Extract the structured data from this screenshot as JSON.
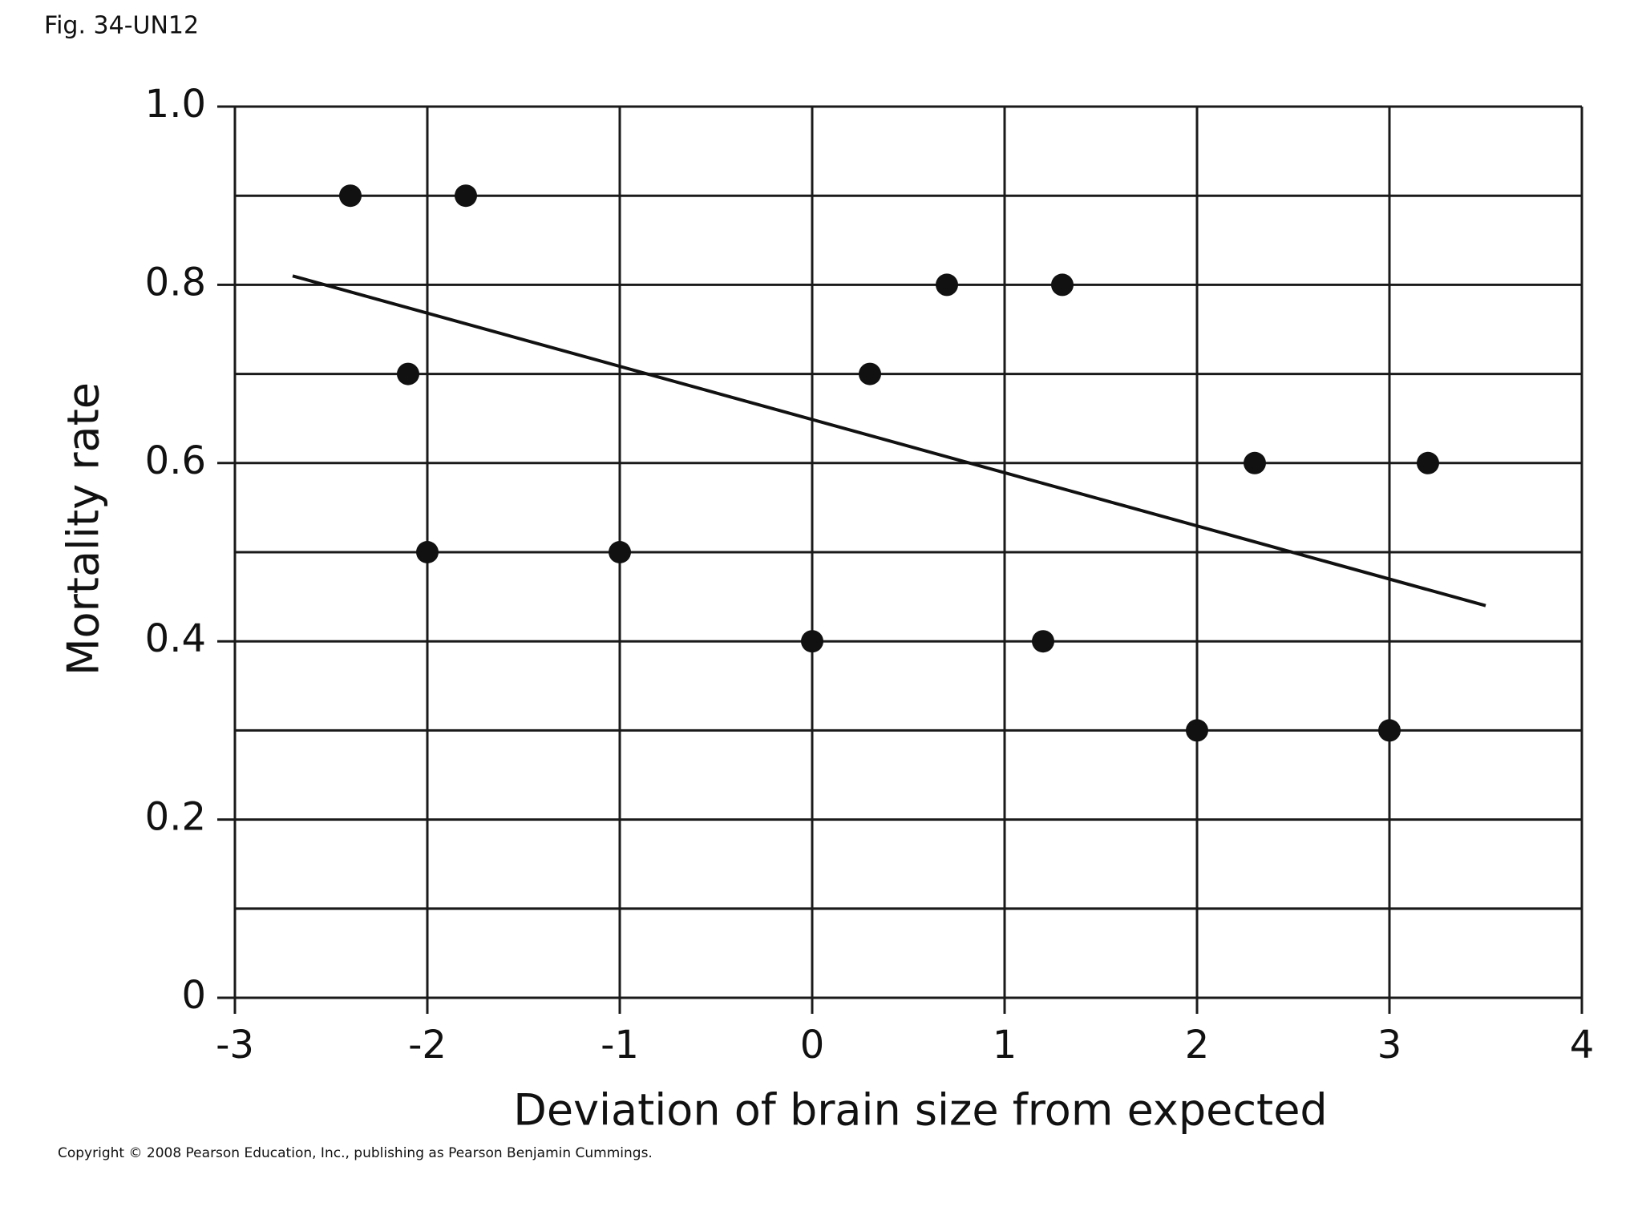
{
  "chart_data": {
    "type": "scatter",
    "title": "Fig. 34-UN12",
    "xlabel": "Deviation of brain size from expected",
    "ylabel": "Mortality rate",
    "footer": "Copyright © 2008 Pearson Education, Inc., publishing as Pearson Benjamin Cummings.",
    "x": [
      -2.4,
      -1.8,
      -2.1,
      -2.0,
      -1.0,
      0,
      0.3,
      0.7,
      1.3,
      1.2,
      2.0,
      2.3,
      3.0,
      3.2
    ],
    "values": [
      0.9,
      0.9,
      0.7,
      0.5,
      0.5,
      0.4,
      0.7,
      0.8,
      0.8,
      0.4,
      0.3,
      0.6,
      0.3,
      0.6
    ],
    "color": "#111111",
    "trend_line": {
      "x": [
        -2.7,
        3.5
      ],
      "values": [
        0.81,
        0.44
      ]
    },
    "xlim": [
      -3,
      4
    ],
    "xticks": [
      -3,
      -2,
      -1,
      0,
      1,
      2,
      3,
      4
    ],
    "ylim": [
      0,
      1
    ],
    "yticks": [
      0,
      0.2,
      0.4,
      0.6,
      0.8,
      {
        "value": 1,
        "label": "1.0"
      }
    ],
    "yminor_ticks": [
      0.1,
      0.3,
      0.5,
      0.7,
      0.9
    ],
    "grid": true
  }
}
